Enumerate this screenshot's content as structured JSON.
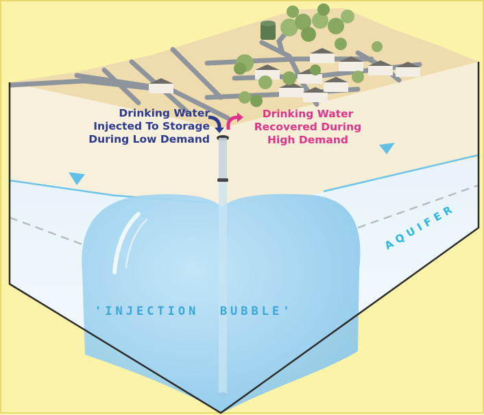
{
  "labels": {
    "injected": [
      "Drinking Water",
      "Injected To Storage",
      "During Low Demand"
    ],
    "recovered": [
      "Drinking Water",
      "Recovered During",
      "High Demand"
    ],
    "aquifer": "AQUIFER",
    "bubble": "'INJECTION  BUBBLE'"
  },
  "colors": {
    "background": "#fbf3a8",
    "injected_text": "#2b3a8f",
    "recovered_text": "#e0338a",
    "aquifer_text": "#29b6e6",
    "bubble_text": "#3aa6d8",
    "water": "#9fd3ef",
    "soil": "#f6ecd0",
    "ground": "#ecd8a8",
    "road": "#8e959c"
  },
  "icons": [
    "down-arrow-icon",
    "up-arrow-icon",
    "water-table-marker-icon"
  ]
}
